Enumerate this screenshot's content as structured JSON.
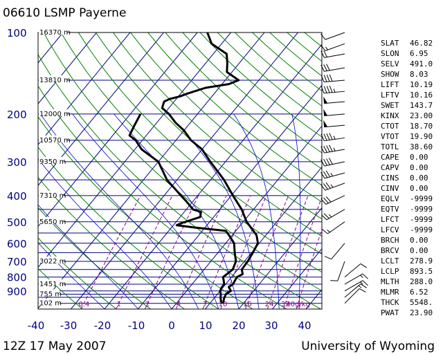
{
  "header": {
    "title": "06610 LSMP Payerne"
  },
  "footer": {
    "time": "12Z 17 May 2007",
    "credit": "University of Wyoming"
  },
  "colors": {
    "isobar": "#000080",
    "isotherm": "#000080",
    "dry_adiabat": "#008000",
    "moist_adiabat": "#0000cd",
    "mixing_ratio": "#8b008b",
    "sounding": "#000000"
  },
  "chart_data": {
    "type": "skew-t log-p",
    "y_axis": {
      "unit": "hPa",
      "scale": "log",
      "range": [
        100,
        1050
      ],
      "tick_labels": [
        100,
        200,
        300,
        400,
        500,
        600,
        700,
        800,
        900
      ]
    },
    "x_axis": {
      "unit": "°C",
      "range": [
        -40,
        40
      ],
      "tick_labels": [
        -40,
        -30,
        -20,
        -10,
        0,
        10,
        20,
        30,
        40
      ]
    },
    "height_labels": [
      {
        "p": 100,
        "text": "16370 m"
      },
      {
        "p": 150,
        "text": "13810 m"
      },
      {
        "p": 200,
        "text": "12000 m"
      },
      {
        "p": 250,
        "text": "10570 m"
      },
      {
        "p": 300,
        "text": "9350 m"
      },
      {
        "p": 400,
        "text": "7310 m"
      },
      {
        "p": 500,
        "text": "5650 m"
      },
      {
        "p": 700,
        "text": "3022 m"
      },
      {
        "p": 850,
        "text": "1451 m"
      },
      {
        "p": 925,
        "text": "755 m"
      },
      {
        "p": 1000,
        "text": "102 m"
      }
    ],
    "mixing_ratio_labels": [
      "0.4",
      "1",
      "2",
      "4",
      "7",
      "10",
      "16",
      "24",
      "32",
      "40g/kg"
    ],
    "mixing_ratio_values": [
      0.4,
      1,
      2,
      4,
      7,
      10,
      16,
      24,
      32,
      40
    ],
    "temperature_profile": [
      {
        "p": 1002,
        "t": 14.0
      },
      {
        "p": 960,
        "t": 13.0
      },
      {
        "p": 925,
        "t": 12.5
      },
      {
        "p": 900,
        "t": 13.2
      },
      {
        "p": 870,
        "t": 11.6
      },
      {
        "p": 850,
        "t": 12.2
      },
      {
        "p": 800,
        "t": 11.6
      },
      {
        "p": 780,
        "t": 12.6
      },
      {
        "p": 750,
        "t": 11.2
      },
      {
        "p": 700,
        "t": 11.0
      },
      {
        "p": 650,
        "t": 10.4
      },
      {
        "p": 600,
        "t": 9.6
      },
      {
        "p": 560,
        "t": 7.2
      },
      {
        "p": 530,
        "t": 4.2
      },
      {
        "p": 500,
        "t": 1.0
      },
      {
        "p": 450,
        "t": -3.5
      },
      {
        "p": 400,
        "t": -9.5
      },
      {
        "p": 350,
        "t": -16.0
      },
      {
        "p": 300,
        "t": -24.5
      },
      {
        "p": 270,
        "t": -30.0
      },
      {
        "p": 250,
        "t": -35.5
      },
      {
        "p": 230,
        "t": -40.0
      },
      {
        "p": 215,
        "t": -44.5
      },
      {
        "p": 200,
        "t": -48.5
      },
      {
        "p": 190,
        "t": -52.0
      },
      {
        "p": 180,
        "t": -53.0
      },
      {
        "p": 176,
        "t": -52.0
      },
      {
        "p": 172,
        "t": -49.5
      },
      {
        "p": 168,
        "t": -48.0
      },
      {
        "p": 160,
        "t": -44.0
      },
      {
        "p": 155,
        "t": -38.0
      },
      {
        "p": 150,
        "t": -36.0
      },
      {
        "p": 140,
        "t": -41.5
      },
      {
        "p": 130,
        "t": -43.5
      },
      {
        "p": 120,
        "t": -46.0
      },
      {
        "p": 110,
        "t": -53.0
      },
      {
        "p": 100,
        "t": -57.0
      }
    ],
    "dewpoint_profile": [
      {
        "p": 1002,
        "t": 13.5
      },
      {
        "p": 960,
        "t": 12.0
      },
      {
        "p": 925,
        "t": 11.0
      },
      {
        "p": 900,
        "t": 10.0
      },
      {
        "p": 870,
        "t": 9.6
      },
      {
        "p": 850,
        "t": 9.6
      },
      {
        "p": 800,
        "t": 7.5
      },
      {
        "p": 750,
        "t": 8.5
      },
      {
        "p": 700,
        "t": 7.5
      },
      {
        "p": 650,
        "t": 5.0
      },
      {
        "p": 600,
        "t": 2.5
      },
      {
        "p": 560,
        "t": -1.0
      },
      {
        "p": 540,
        "t": -3.0
      },
      {
        "p": 525,
        "t": -13.0
      },
      {
        "p": 515,
        "t": -19.0
      },
      {
        "p": 505,
        "t": -18.0
      },
      {
        "p": 480,
        "t": -14.0
      },
      {
        "p": 460,
        "t": -15.0
      },
      {
        "p": 450,
        "t": -18.0
      },
      {
        "p": 420,
        "t": -22.0
      },
      {
        "p": 400,
        "t": -25.0
      },
      {
        "p": 350,
        "t": -33.0
      },
      {
        "p": 300,
        "t": -40.0
      },
      {
        "p": 270,
        "t": -48.0
      },
      {
        "p": 250,
        "t": -52.0
      },
      {
        "p": 240,
        "t": -55.0
      },
      {
        "p": 230,
        "t": -55.5
      },
      {
        "p": 220,
        "t": -56.0
      },
      {
        "p": 200,
        "t": -57.0
      }
    ],
    "wind_barbs": [
      {
        "p": 100,
        "dir": 250,
        "spd": 10
      },
      {
        "p": 110,
        "dir": 250,
        "spd": 15
      },
      {
        "p": 120,
        "dir": 260,
        "spd": 20
      },
      {
        "p": 135,
        "dir": 260,
        "spd": 30
      },
      {
        "p": 150,
        "dir": 265,
        "spd": 40
      },
      {
        "p": 165,
        "dir": 265,
        "spd": 45
      },
      {
        "p": 180,
        "dir": 265,
        "spd": 50
      },
      {
        "p": 200,
        "dir": 265,
        "spd": 50
      },
      {
        "p": 220,
        "dir": 265,
        "spd": 50
      },
      {
        "p": 245,
        "dir": 262,
        "spd": 45
      },
      {
        "p": 270,
        "dir": 260,
        "spd": 45
      },
      {
        "p": 300,
        "dir": 258,
        "spd": 40
      },
      {
        "p": 330,
        "dir": 255,
        "spd": 35
      },
      {
        "p": 360,
        "dir": 250,
        "spd": 35
      },
      {
        "p": 400,
        "dir": 245,
        "spd": 30
      },
      {
        "p": 450,
        "dir": 240,
        "spd": 25
      },
      {
        "p": 500,
        "dir": 235,
        "spd": 15
      },
      {
        "p": 600,
        "dir": 220,
        "spd": 10
      },
      {
        "p": 700,
        "dir": 200,
        "spd": 10
      },
      {
        "p": 800,
        "dir": 50,
        "spd": 10
      },
      {
        "p": 850,
        "dir": 60,
        "spd": 15
      },
      {
        "p": 900,
        "dir": 60,
        "spd": 15
      },
      {
        "p": 950,
        "dir": 50,
        "spd": 15
      },
      {
        "p": 1000,
        "dir": 45,
        "spd": 10
      }
    ]
  },
  "indices": [
    {
      "key": "SLAT",
      "value": "46.82"
    },
    {
      "key": "SLON",
      "value": "6.95"
    },
    {
      "key": "SELV",
      "value": "491.0"
    },
    {
      "key": "SHOW",
      "value": "8.03"
    },
    {
      "key": "LIFT",
      "value": "10.19"
    },
    {
      "key": "LFTV",
      "value": "10.16"
    },
    {
      "key": "SWET",
      "value": "143.7"
    },
    {
      "key": "KINX",
      "value": "23.00"
    },
    {
      "key": "CTOT",
      "value": "18.70"
    },
    {
      "key": "VTOT",
      "value": "19.90"
    },
    {
      "key": "TOTL",
      "value": "38.60"
    },
    {
      "key": "CAPE",
      "value": "0.00"
    },
    {
      "key": "CAPV",
      "value": "0.00"
    },
    {
      "key": "CINS",
      "value": "0.00"
    },
    {
      "key": "CINV",
      "value": "0.00"
    },
    {
      "key": "EQLV",
      "value": "-9999"
    },
    {
      "key": "EQTV",
      "value": "-9999"
    },
    {
      "key": "LFCT",
      "value": "-9999"
    },
    {
      "key": "LFCV",
      "value": "-9999"
    },
    {
      "key": "BRCH",
      "value": "0.00"
    },
    {
      "key": "BRCV",
      "value": "0.00"
    },
    {
      "key": "LCLT",
      "value": "278.9"
    },
    {
      "key": "LCLP",
      "value": "893.5"
    },
    {
      "key": "MLTH",
      "value": "288.0"
    },
    {
      "key": "MLMR",
      "value": "6.52"
    },
    {
      "key": "THCK",
      "value": "5548."
    },
    {
      "key": "PWAT",
      "value": "23.90"
    }
  ]
}
